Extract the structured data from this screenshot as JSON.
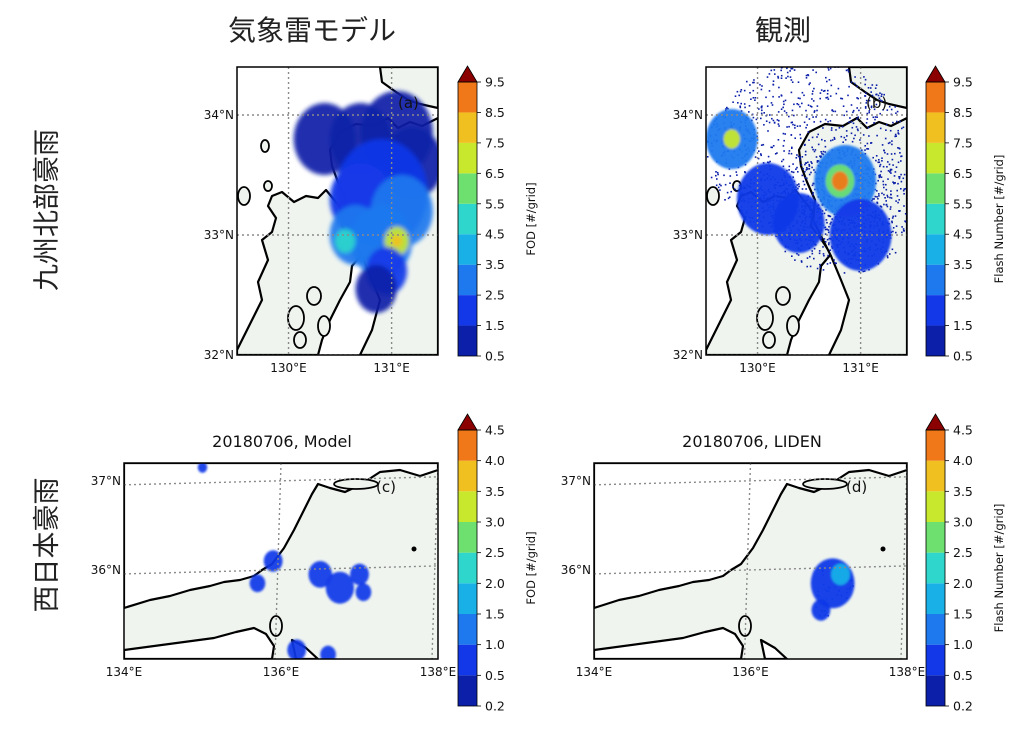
{
  "column_titles": [
    "気象雷モデル",
    "観測"
  ],
  "row_labels": [
    "九州北部豪雨",
    "西日本豪雨"
  ],
  "chart_data": [
    {
      "type": "heatmap",
      "panel_label": "(a)",
      "title": "",
      "xlabel": "",
      "ylabel": "",
      "x_ticks": [
        "130°E",
        "131°E"
      ],
      "y_ticks": [
        "32°N",
        "33°N",
        "34°N"
      ],
      "xlim": [
        129.5,
        131.45
      ],
      "ylim": [
        32.0,
        34.4
      ],
      "colorbar": {
        "label": "FOD [#/grid]",
        "ticks": [
          "0.5",
          "1.5",
          "2.5",
          "3.5",
          "4.5",
          "5.5",
          "6.5",
          "7.5",
          "8.5",
          "9.5"
        ]
      },
      "cells": [
        {
          "lon": 130.35,
          "lat": 33.8,
          "v": 1.0,
          "r": 0.3
        },
        {
          "lon": 130.7,
          "lat": 33.8,
          "v": 1.0,
          "r": 0.3
        },
        {
          "lon": 131.05,
          "lat": 33.85,
          "v": 1.0,
          "r": 0.35
        },
        {
          "lon": 131.2,
          "lat": 33.6,
          "v": 1.0,
          "r": 0.3
        },
        {
          "lon": 130.9,
          "lat": 33.35,
          "v": 1.5,
          "r": 0.45
        },
        {
          "lon": 130.7,
          "lat": 33.3,
          "v": 2.0,
          "r": 0.3
        },
        {
          "lon": 131.1,
          "lat": 33.2,
          "v": 2.5,
          "r": 0.3
        },
        {
          "lon": 130.65,
          "lat": 33.0,
          "v": 3.0,
          "r": 0.25
        },
        {
          "lon": 130.9,
          "lat": 32.95,
          "v": 3.0,
          "r": 0.3
        },
        {
          "lon": 130.55,
          "lat": 32.95,
          "v": 5.0,
          "r": 0.1
        },
        {
          "lon": 131.05,
          "lat": 32.95,
          "v": 6.5,
          "r": 0.12
        },
        {
          "lon": 131.05,
          "lat": 32.95,
          "v": 8.0,
          "r": 0.05
        },
        {
          "lon": 130.95,
          "lat": 32.7,
          "v": 2.0,
          "r": 0.2
        },
        {
          "lon": 130.85,
          "lat": 32.55,
          "v": 1.0,
          "r": 0.2
        }
      ]
    },
    {
      "type": "heatmap",
      "panel_label": "(b)",
      "title": "",
      "xlabel": "",
      "ylabel": "",
      "x_ticks": [
        "130°E",
        "131°E"
      ],
      "y_ticks": [
        "32°N",
        "33°N",
        "34°N"
      ],
      "xlim": [
        129.5,
        131.45
      ],
      "ylim": [
        32.0,
        34.4
      ],
      "colorbar": {
        "label": "Flash Number [#/grid]",
        "ticks": [
          "0.5",
          "1.5",
          "2.5",
          "3.5",
          "4.5",
          "5.5",
          "6.5",
          "7.5",
          "8.5",
          "9.5"
        ]
      },
      "cells": [
        {
          "lon": 130.5,
          "lat": 33.7,
          "v": 0.8,
          "r": 1.0
        },
        {
          "lon": 130.8,
          "lat": 33.2,
          "v": 1.0,
          "r": 0.7
        },
        {
          "lon": 129.75,
          "lat": 33.8,
          "v": 2.5,
          "r": 0.25
        },
        {
          "lon": 129.75,
          "lat": 33.8,
          "v": 7.0,
          "r": 0.08
        },
        {
          "lon": 130.85,
          "lat": 33.45,
          "v": 3.0,
          "r": 0.3
        },
        {
          "lon": 130.8,
          "lat": 33.45,
          "v": 6.0,
          "r": 0.14
        },
        {
          "lon": 130.8,
          "lat": 33.45,
          "v": 9.0,
          "r": 0.08
        },
        {
          "lon": 130.1,
          "lat": 33.3,
          "v": 2.0,
          "r": 0.3
        },
        {
          "lon": 130.4,
          "lat": 33.1,
          "v": 2.0,
          "r": 0.25
        },
        {
          "lon": 131.0,
          "lat": 33.0,
          "v": 2.0,
          "r": 0.3
        }
      ]
    },
    {
      "type": "heatmap",
      "panel_label": "(c)",
      "title": "20180706, Model",
      "xlabel": "",
      "ylabel": "",
      "x_ticks": [
        "134°E",
        "136°E",
        "138°E"
      ],
      "y_ticks": [
        "36°N",
        "37°N"
      ],
      "xlim": [
        134.0,
        138.0
      ],
      "ylim": [
        35.0,
        37.2
      ],
      "colorbar": {
        "label": "FOD [#/grid]",
        "ticks": [
          "0.2",
          "0.5",
          "1.0",
          "1.5",
          "2.0",
          "2.5",
          "3.0",
          "3.5",
          "4.0",
          "4.5"
        ]
      },
      "cells": [
        {
          "lon": 135.9,
          "lat": 36.1,
          "v": 0.8,
          "r": 0.12
        },
        {
          "lon": 135.7,
          "lat": 35.85,
          "v": 0.8,
          "r": 0.1
        },
        {
          "lon": 136.5,
          "lat": 35.95,
          "v": 0.8,
          "r": 0.15
        },
        {
          "lon": 136.75,
          "lat": 35.8,
          "v": 0.8,
          "r": 0.18
        },
        {
          "lon": 137.0,
          "lat": 35.95,
          "v": 0.8,
          "r": 0.12
        },
        {
          "lon": 137.05,
          "lat": 35.75,
          "v": 0.8,
          "r": 0.1
        },
        {
          "lon": 136.2,
          "lat": 35.1,
          "v": 0.8,
          "r": 0.12
        },
        {
          "lon": 136.6,
          "lat": 35.05,
          "v": 0.8,
          "r": 0.1
        },
        {
          "lon": 135.0,
          "lat": 37.15,
          "v": 0.8,
          "r": 0.06
        }
      ]
    },
    {
      "type": "heatmap",
      "panel_label": "(d)",
      "title": "20180706, LIDEN",
      "xlabel": "",
      "ylabel": "",
      "x_ticks": [
        "134°E",
        "136°E",
        "138°E"
      ],
      "y_ticks": [
        "36°N",
        "37°N"
      ],
      "xlim": [
        134.0,
        138.0
      ],
      "ylim": [
        35.0,
        37.2
      ],
      "colorbar": {
        "label": "Flash Number [#/grid]",
        "ticks": [
          "0.2",
          "0.5",
          "1.0",
          "1.5",
          "2.0",
          "2.5",
          "3.0",
          "3.5",
          "4.0",
          "4.5"
        ]
      },
      "cells": [
        {
          "lon": 137.05,
          "lat": 35.85,
          "v": 0.8,
          "r": 0.28
        },
        {
          "lon": 137.15,
          "lat": 35.95,
          "v": 1.5,
          "r": 0.12
        },
        {
          "lon": 136.9,
          "lat": 35.55,
          "v": 0.8,
          "r": 0.12
        }
      ]
    }
  ],
  "colors": {
    "scale": [
      "#0b1fa8",
      "#1238e8",
      "#1e78ee",
      "#19b0e8",
      "#2ed6cc",
      "#6ee070",
      "#c8e82e",
      "#f0c020",
      "#f07818",
      "#d82010",
      "#8b0000"
    ],
    "land": "#eff4ef",
    "coast": "#000000",
    "grid": "#8a8a8a"
  }
}
